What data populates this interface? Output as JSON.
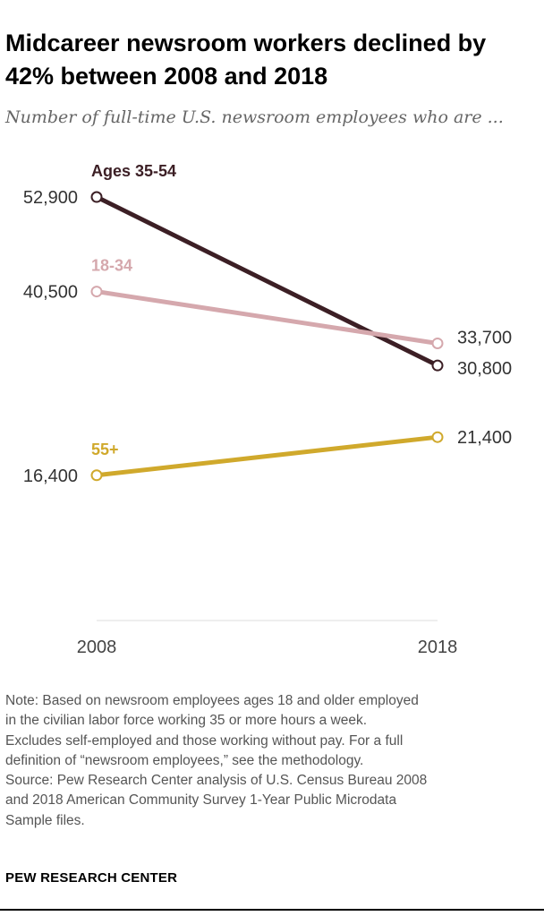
{
  "title": "Midcareer newsroom workers declined by 42% between 2008 and 2018",
  "subtitle": "Number of full-time U.S. newsroom employees who are ...",
  "colors": {
    "ages_35_54": "#3c1f25",
    "ages_18_34": "#d5a8ad",
    "ages_55_plus": "#d0a92c",
    "axis": "#dddddd",
    "marker_fill": "#ffffff"
  },
  "chart_data": {
    "type": "line",
    "title": "Midcareer newsroom workers declined by 42% between 2008 and 2018",
    "xlabel": "",
    "ylabel": "Number of full-time U.S. newsroom employees",
    "x": [
      "2008",
      "2018"
    ],
    "ylim": [
      0,
      60000
    ],
    "grid": false,
    "series": [
      {
        "name": "Ages 35-54",
        "values": [
          52900,
          30800
        ],
        "labels": [
          "52,900",
          "30,800"
        ]
      },
      {
        "name": "18-34",
        "values": [
          40500,
          33700
        ],
        "labels": [
          "40,500",
          "33,700"
        ]
      },
      {
        "name": "55+",
        "values": [
          16400,
          21400
        ],
        "labels": [
          "16,400",
          "21,400"
        ]
      }
    ]
  },
  "note_lines": [
    "Note: Based on newsroom employees ages 18 and older employed",
    "in the civilian labor force working 35 or more hours a week.",
    "Excludes self-employed and those working without pay. For a full",
    "definition of “newsroom employees,” see the methodology.",
    "Source: Pew Research Center analysis of U.S. Census Bureau 2008",
    "and 2018 American Community Survey 1-Year Public Microdata",
    "Sample files."
  ],
  "footer": "PEW RESEARCH CENTER"
}
